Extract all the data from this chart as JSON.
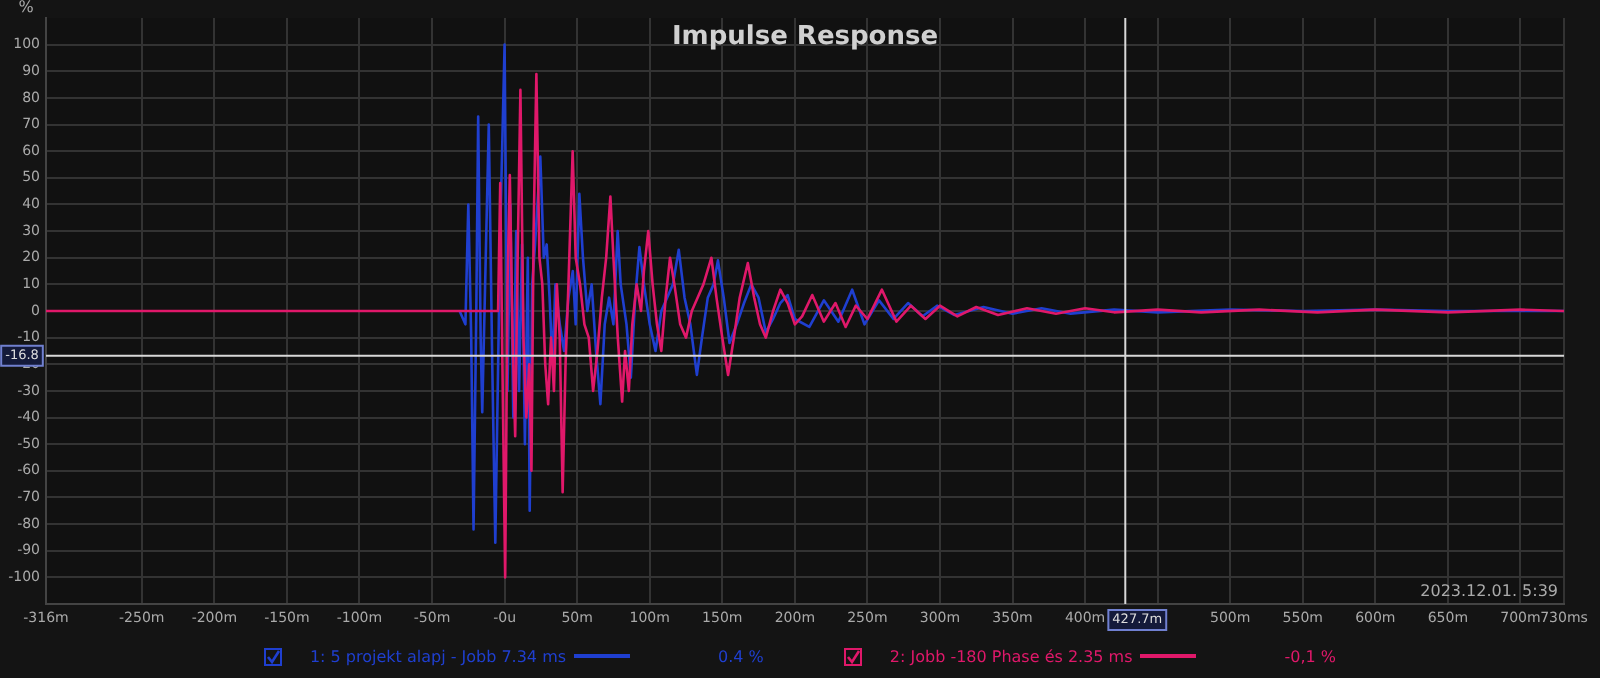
{
  "chart_data": {
    "type": "line",
    "title": "Impulse Response",
    "ylabel": "%",
    "legend": "bottom",
    "grid": true,
    "marker": "none",
    "line_style": "solid",
    "xlim": [
      -316,
      730
    ],
    "ylim": [
      -110,
      110
    ],
    "xticks": [
      {
        "value": -316,
        "label": "-316m"
      },
      {
        "value": -250,
        "label": "-250m"
      },
      {
        "value": -200,
        "label": "-200m"
      },
      {
        "value": -150,
        "label": "-150m"
      },
      {
        "value": -100,
        "label": "-100m"
      },
      {
        "value": -50,
        "label": "-50m"
      },
      {
        "value": 0,
        "label": "-0u"
      },
      {
        "value": 50,
        "label": "50m"
      },
      {
        "value": 100,
        "label": "100m"
      },
      {
        "value": 150,
        "label": "150m"
      },
      {
        "value": 200,
        "label": "200m"
      },
      {
        "value": 250,
        "label": "250m"
      },
      {
        "value": 300,
        "label": "300m"
      },
      {
        "value": 350,
        "label": "350m"
      },
      {
        "value": 400,
        "label": "400m"
      },
      {
        "value": 450,
        "label": null
      },
      {
        "value": 500,
        "label": "500m"
      },
      {
        "value": 550,
        "label": "550m"
      },
      {
        "value": 600,
        "label": "600m"
      },
      {
        "value": 650,
        "label": "650m"
      },
      {
        "value": 700,
        "label": "700m"
      },
      {
        "value": 730,
        "label": "730ms"
      }
    ],
    "yticks": [
      -100,
      -90,
      -80,
      -70,
      -60,
      -50,
      -40,
      -30,
      -20,
      -10,
      0,
      10,
      20,
      30,
      40,
      50,
      60,
      70,
      80,
      90,
      100
    ],
    "ref_lines": [
      {
        "axis": "x",
        "value": 427.7,
        "label": "427.7m",
        "color": "#d8d8d8"
      },
      {
        "axis": "y",
        "value": -16.8,
        "label": "-16.8",
        "color": "#d8d8d8"
      }
    ],
    "annotations": [
      "0.4 %",
      "-0,1 %",
      "2023.12.01. 5:39"
    ],
    "series": [
      {
        "name": "1: 5 projekt alapj - Jobb 7.34 ms",
        "color": "#1f3fd0",
        "x": [
          -31,
          -27,
          -25,
          -23,
          -21.4,
          -19.5,
          -18.2,
          -16.5,
          -15.4,
          -13,
          -10.9,
          -8.5,
          -6.4,
          -3,
          0,
          2,
          4,
          6,
          8,
          10,
          12,
          14,
          16,
          17.3,
          19,
          21,
          24.6,
          27,
          29,
          31,
          33,
          35,
          38,
          41,
          44,
          47,
          49,
          51.5,
          54,
          57,
          60,
          63,
          66,
          69,
          72,
          75,
          77.9,
          80,
          84,
          87,
          90,
          92.9,
          96,
          100,
          104,
          108,
          112,
          116,
          120,
          124,
          128,
          132.5,
          136,
          140,
          144,
          147,
          151,
          155,
          160,
          165,
          170,
          175,
          180,
          185,
          190,
          195,
          200,
          210,
          220,
          230,
          239.5,
          248,
          258,
          268,
          278,
          288,
          298,
          310,
          330,
          350,
          370,
          390,
          420,
          450,
          500,
          550,
          600,
          650,
          730
        ],
        "values": [
          0,
          -5,
          40,
          -10,
          -82,
          0,
          73,
          -10,
          -38,
          20,
          70,
          -20,
          -87,
          30,
          100,
          -30,
          40,
          -40,
          30,
          -30,
          25,
          -50,
          20,
          -75,
          10,
          25,
          58,
          20,
          25,
          5,
          -20,
          10,
          -5,
          -15,
          5,
          15,
          -5,
          44,
          20,
          0,
          10,
          -15,
          -35,
          -5,
          5,
          -5,
          30,
          10,
          -5,
          -25,
          5,
          24,
          10,
          -5,
          -15,
          0,
          5,
          10,
          23,
          5,
          -5,
          -24,
          -10,
          5,
          10,
          19,
          5,
          -12,
          -5,
          3,
          10,
          5,
          -8,
          -3,
          3,
          6,
          -3,
          -6,
          4,
          -4,
          8,
          -5,
          4,
          -3,
          3,
          -2,
          2,
          -1.5,
          1.5,
          -1,
          1,
          -1,
          0.5,
          -0.5,
          0.5,
          0,
          0.5,
          0,
          0
        ]
      },
      {
        "name": "2: Jobb -180 Phase és 2.35 ms",
        "color": "#e0186a",
        "x": [
          -316,
          -200,
          -100,
          -5,
          -4.5,
          -3,
          -1.5,
          0.4,
          2,
          3.6,
          5.5,
          7.3,
          9,
          10.9,
          13,
          15,
          17,
          18.5,
          20,
          21.9,
          24,
          26,
          28,
          30,
          32,
          34,
          36,
          38,
          40,
          42,
          44,
          46.9,
          49,
          52,
          55,
          58,
          61,
          64,
          67,
          70,
          72.9,
          75,
          78,
          81,
          83,
          85.6,
          88,
          91,
          94,
          96,
          99,
          102,
          105,
          108,
          111,
          114,
          117,
          121,
          125,
          129,
          133,
          137,
          142.5,
          146,
          150,
          154,
          158,
          162,
          167.6,
          172,
          176,
          180,
          185,
          190,
          195,
          200,
          205,
          212,
          220,
          228,
          235,
          242,
          250,
          260,
          270,
          280,
          290,
          300,
          312,
          325,
          340,
          360,
          380,
          400,
          420,
          450,
          480,
          520,
          560,
          600,
          650,
          700,
          730
        ],
        "values": [
          0,
          0,
          0,
          0,
          0,
          48,
          -20,
          -100,
          10,
          51,
          -10,
          -47,
          20,
          83,
          -10,
          -40,
          -20,
          -60,
          30,
          89,
          20,
          10,
          -20,
          -35,
          -10,
          -30,
          10,
          -10,
          -68,
          -20,
          10,
          60,
          20,
          10,
          -5,
          -10,
          -30,
          -15,
          5,
          20,
          43,
          20,
          -10,
          -34,
          -15,
          -30,
          -5,
          10,
          0,
          15,
          30,
          10,
          -5,
          -15,
          5,
          20,
          10,
          -5,
          -10,
          0,
          5,
          10,
          20,
          5,
          -10,
          -24,
          -10,
          5,
          18,
          5,
          -5,
          -10,
          0,
          8,
          3,
          -5,
          -2,
          6,
          -4,
          3,
          -6,
          2,
          -3,
          8,
          -4,
          2,
          -3,
          2,
          -2,
          1.5,
          -1.5,
          1,
          -1,
          1,
          -0.5,
          0.5,
          -0.5,
          0.5,
          -0.5,
          0.5,
          -0.5,
          0.5,
          0
        ]
      }
    ]
  }
}
